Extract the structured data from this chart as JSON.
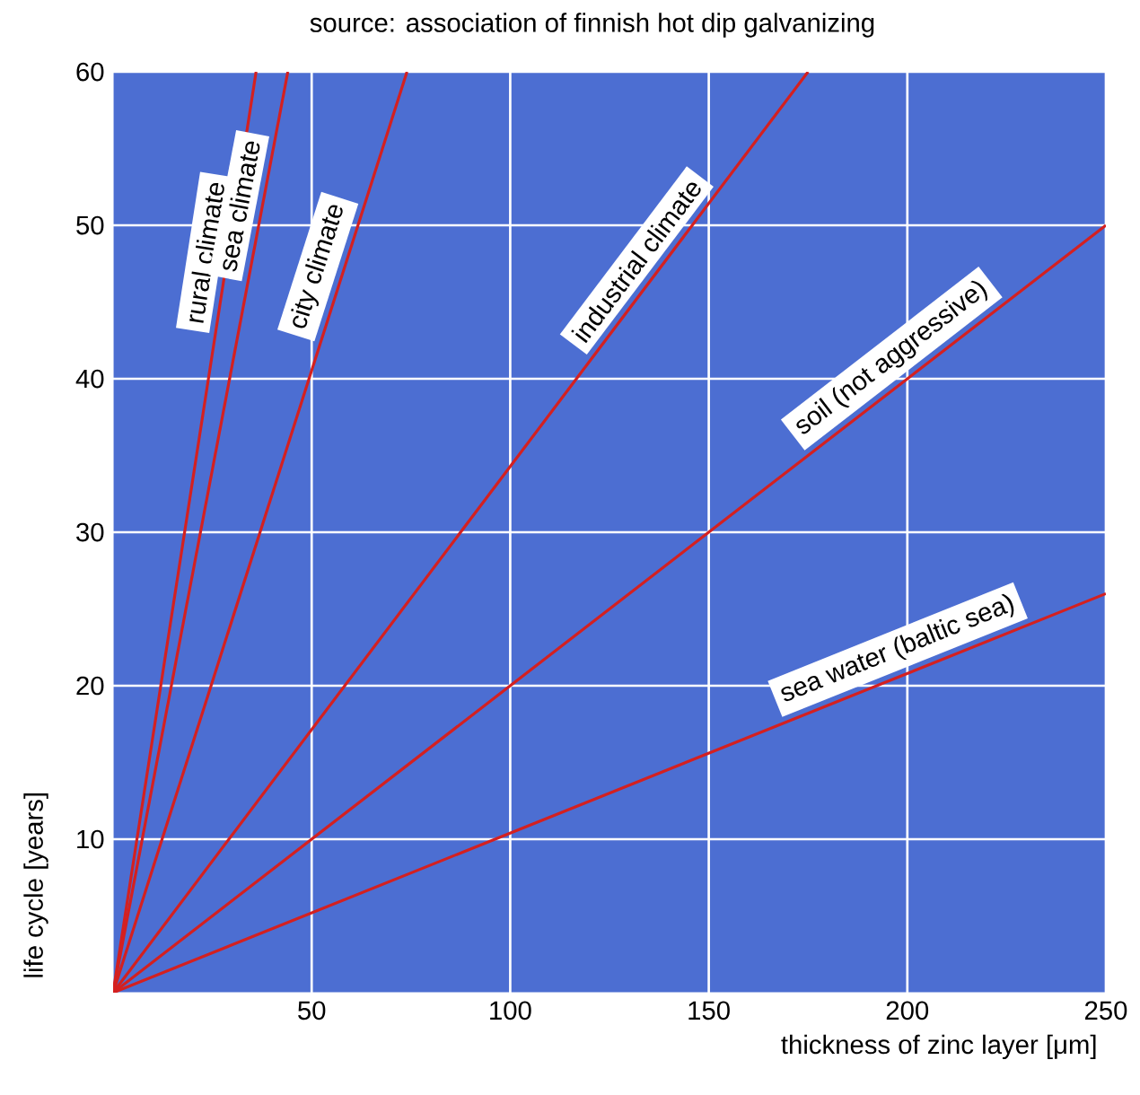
{
  "chart_data": {
    "type": "line",
    "title": "source: association of finnish hot dip galvanizing",
    "xlabel": "thickness of zinc layer [μm]",
    "ylabel": "life cycle [years]",
    "xlim": [
      0,
      250
    ],
    "ylim": [
      0,
      60
    ],
    "xticks": [
      50,
      100,
      150,
      200,
      250
    ],
    "yticks": [
      10,
      20,
      30,
      40,
      50,
      60
    ],
    "grid": true,
    "legend": false,
    "marker": "none",
    "line_style": "solid",
    "series": [
      {
        "name": "rural climate",
        "color": "#d42020",
        "x": [
          0,
          36
        ],
        "values": [
          0,
          60
        ]
      },
      {
        "name": "sea climate",
        "color": "#d42020",
        "x": [
          0,
          44
        ],
        "values": [
          0,
          60
        ]
      },
      {
        "name": "city climate",
        "color": "#d42020",
        "x": [
          0,
          74
        ],
        "values": [
          0,
          60
        ]
      },
      {
        "name": "industrial climate",
        "color": "#d42020",
        "x": [
          0,
          175
        ],
        "values": [
          0,
          60
        ]
      },
      {
        "name": "soil (not aggressive)",
        "color": "#d42020",
        "x": [
          0,
          250
        ],
        "values": [
          0,
          50
        ]
      },
      {
        "name": "sea water (baltic sea)",
        "color": "#d42020",
        "x": [
          0,
          250
        ],
        "values": [
          0,
          26
        ]
      }
    ]
  }
}
